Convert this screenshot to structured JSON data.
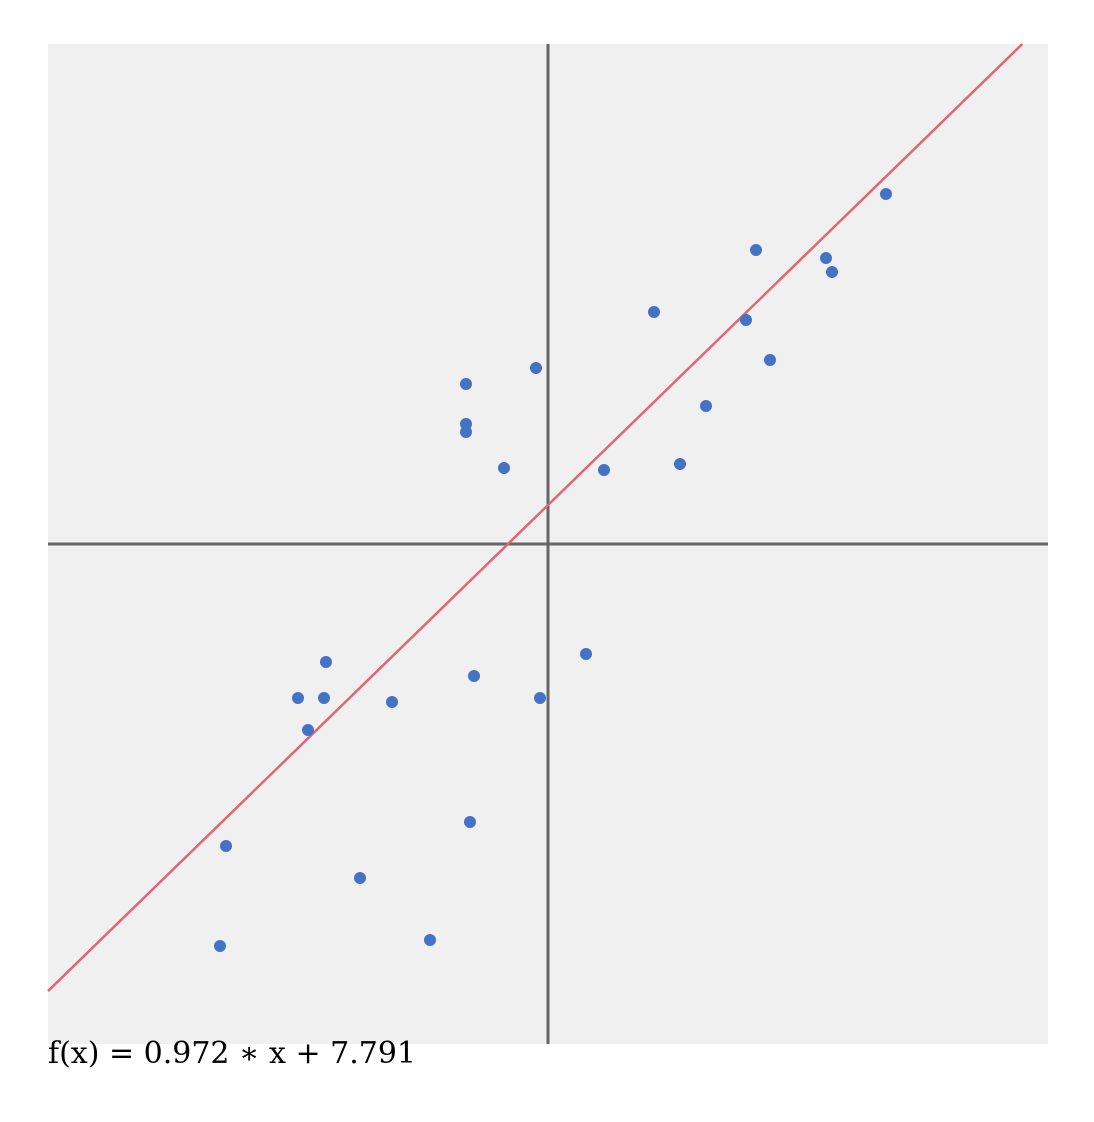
{
  "chart_data": {
    "type": "scatter",
    "title": "",
    "xlabel": "",
    "ylabel": "",
    "xlim": [
      -100,
      100
    ],
    "ylim": [
      -100,
      100
    ],
    "grid": false,
    "axes_lines": true,
    "colors": {
      "background": "#f0f0f0",
      "points": "#4472c4",
      "regression_line": "#e06673",
      "axes": "#666666"
    },
    "regression": {
      "slope": 0.972,
      "intercept": 7.791,
      "equation_label": "f(x) = 0.972 ∗ x + 7.791"
    },
    "points": [
      {
        "x": 67.6,
        "y": 70.0
      },
      {
        "x": 41.6,
        "y": 58.8
      },
      {
        "x": 55.6,
        "y": 57.2
      },
      {
        "x": 56.8,
        "y": 54.4
      },
      {
        "x": 21.2,
        "y": 46.4
      },
      {
        "x": 39.6,
        "y": 44.8
      },
      {
        "x": 44.4,
        "y": 36.8
      },
      {
        "x": -2.4,
        "y": 35.2
      },
      {
        "x": -16.4,
        "y": 32.0
      },
      {
        "x": -16.4,
        "y": 24.0
      },
      {
        "x": -16.4,
        "y": 22.4
      },
      {
        "x": 31.6,
        "y": 27.6
      },
      {
        "x": -8.8,
        "y": 15.2
      },
      {
        "x": 11.2,
        "y": 14.8
      },
      {
        "x": 26.4,
        "y": 16.0
      },
      {
        "x": 7.6,
        "y": -22.0
      },
      {
        "x": -44.4,
        "y": -23.6
      },
      {
        "x": -14.8,
        "y": -26.4
      },
      {
        "x": -50.0,
        "y": -30.8
      },
      {
        "x": -44.8,
        "y": -30.8
      },
      {
        "x": -31.2,
        "y": -31.6
      },
      {
        "x": -1.6,
        "y": -30.8
      },
      {
        "x": -48.0,
        "y": -37.2
      },
      {
        "x": -15.6,
        "y": -55.6
      },
      {
        "x": -64.4,
        "y": -60.4
      },
      {
        "x": -37.6,
        "y": -66.8
      },
      {
        "x": -23.6,
        "y": -79.2
      },
      {
        "x": -65.6,
        "y": -80.4
      }
    ]
  }
}
